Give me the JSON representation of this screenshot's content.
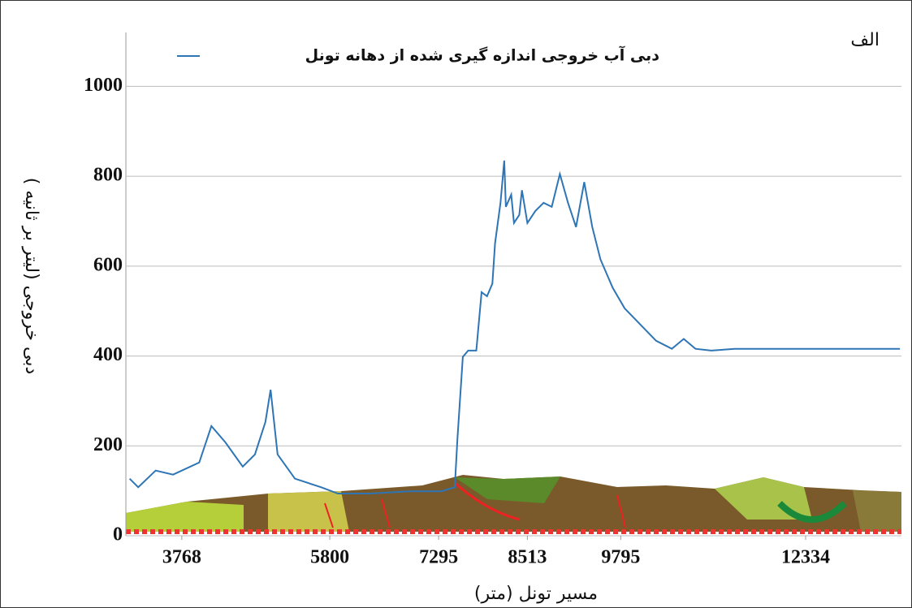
{
  "chart_data": {
    "type": "line",
    "title": "دبی آب خروجی اندازه گیری شده از دهانه تونل",
    "panel_label": "الف",
    "y_label": "دبی خروجی (لیتر بر ثانیه )",
    "x_label": "مسیر تونل (متر)",
    "series": [
      {
        "name": "دبی آب خروجی اندازه گیری شده از دهانه تونل",
        "color": "#2e75b6",
        "x": [
          3051,
          3170,
          3409,
          3648,
          4007,
          4174,
          4366,
          4605,
          4772,
          4916,
          4987,
          5083,
          5322,
          5680,
          5912,
          6361,
          6884,
          7332,
          7516,
          7553,
          7627,
          7701,
          7812,
          7885,
          7959,
          8033,
          8070,
          8144,
          8196,
          8218,
          8292,
          8329,
          8402,
          8439,
          8513,
          8624,
          8736,
          8848,
          8959,
          9071,
          9182,
          9294,
          9405,
          9517,
          9684,
          9849,
          10065,
          10281,
          10497,
          10660,
          10822,
          11038,
          11362,
          12442,
          13630
        ],
        "values": [
          127,
          108,
          145,
          136,
          163,
          244,
          208,
          154,
          181,
          253,
          325,
          181,
          127,
          108,
          94,
          94,
          99,
          99,
          108,
          217,
          398,
          412,
          412,
          542,
          533,
          561,
          651,
          741,
          835,
          732,
          759,
          696,
          714,
          769,
          696,
          723,
          741,
          732,
          805,
          741,
          687,
          787,
          687,
          615,
          552,
          506,
          470,
          434,
          416,
          438,
          416,
          412,
          416,
          416,
          416
        ]
      }
    ],
    "xlim": [
      3000,
      13650
    ],
    "xticks": [
      3768,
      5800,
      7295,
      8513,
      9795,
      12334
    ],
    "ylim": [
      0,
      1120
    ],
    "yticks": [
      0,
      200,
      400,
      600,
      800,
      1000
    ],
    "grid": true
  }
}
